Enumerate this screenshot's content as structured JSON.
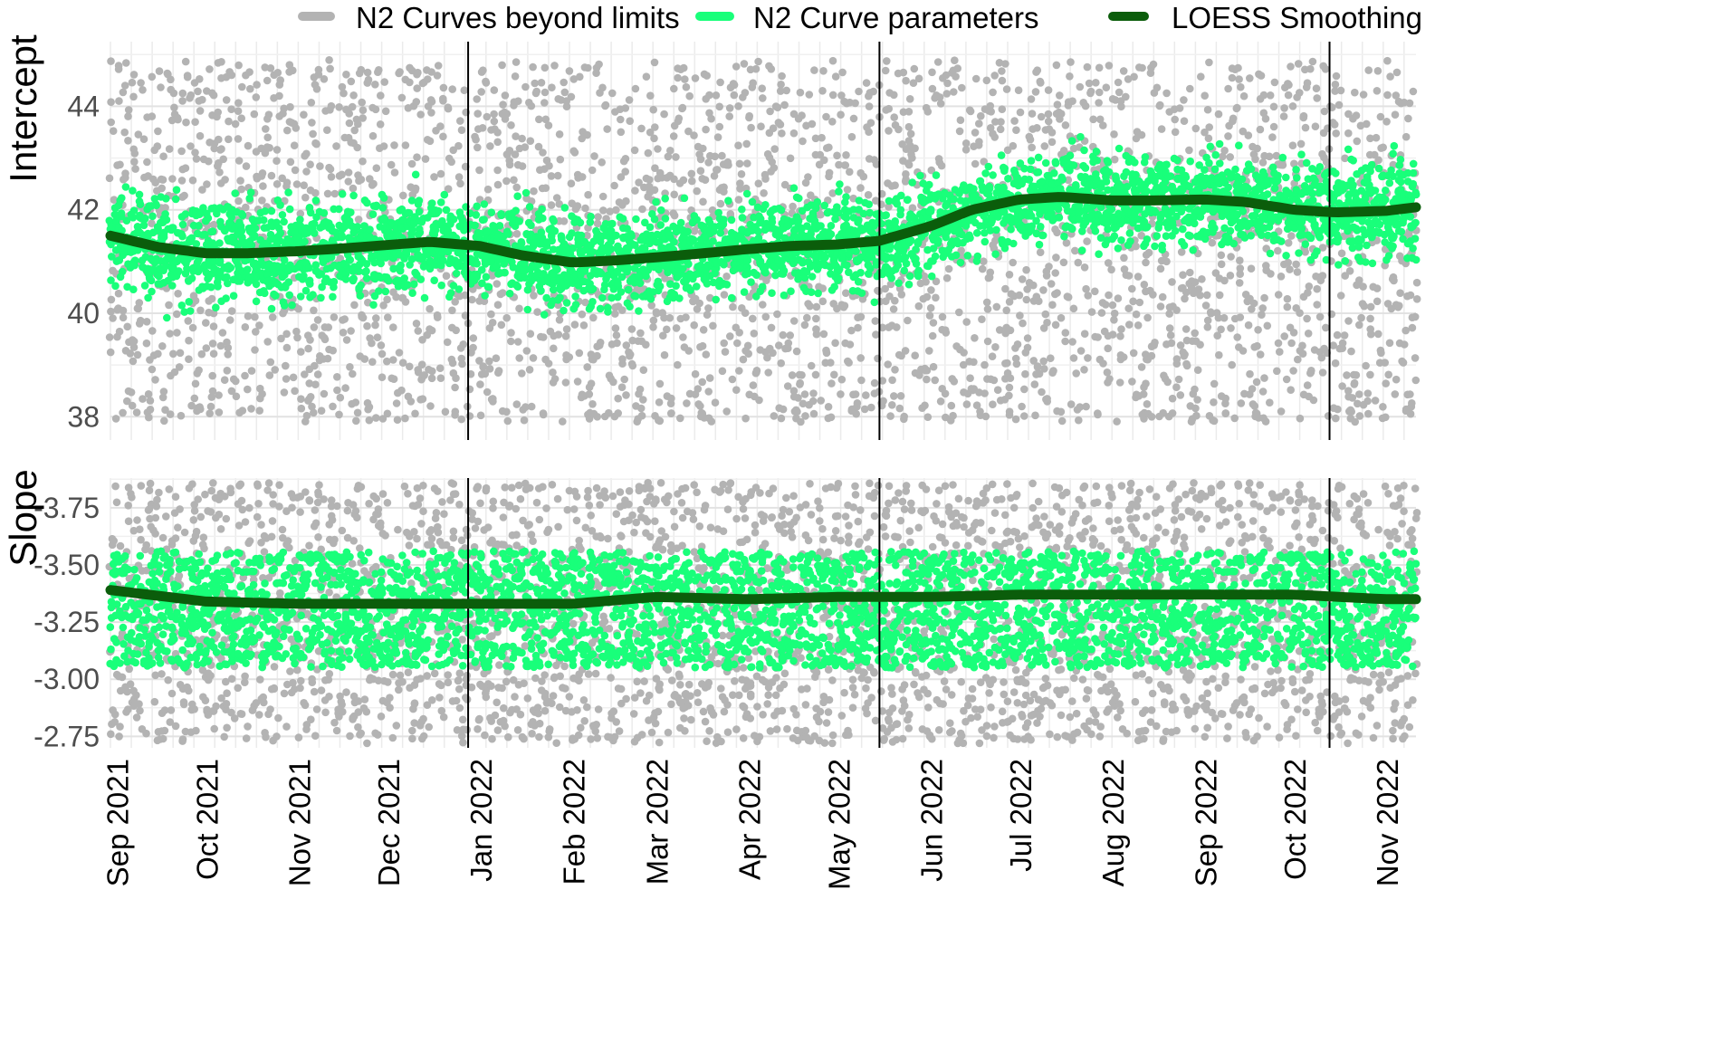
{
  "legend": {
    "items": [
      {
        "label": "N2 Curves beyond limits",
        "color": "#b3b3b3"
      },
      {
        "label": "N2 Curve parameters",
        "color": "#19ff7a"
      },
      {
        "label": "LOESS Smoothing",
        "color": "#0b5d0b"
      }
    ]
  },
  "chart_data": [
    {
      "type": "scatter",
      "panel": "top",
      "ylabel": "Intercept",
      "ylim": [
        37.55,
        45.25
      ],
      "yticks": [
        "38",
        "40",
        "42",
        "44"
      ],
      "ytick_values": [
        38,
        40,
        42,
        44
      ],
      "xlim": [
        "2021-08-30",
        "2022-11-11"
      ],
      "xticks": [
        "Sep 2021",
        "Oct 2021",
        "Nov 2021",
        "Dec 2021",
        "Jan 2022",
        "Feb 2022",
        "Mar 2022",
        "Apr 2022",
        "May 2022",
        "Jun 2022",
        "Jul 2022",
        "Aug 2022",
        "Sep 2022",
        "Oct 2022",
        "Nov 2022"
      ],
      "xtick_dates": [
        "2021-09-01",
        "2021-10-01",
        "2021-11-01",
        "2021-12-01",
        "2022-01-01",
        "2022-02-01",
        "2022-03-01",
        "2022-04-01",
        "2022-05-01",
        "2022-06-01",
        "2022-07-01",
        "2022-08-01",
        "2022-09-01",
        "2022-10-01",
        "2022-11-01"
      ],
      "vlines": [
        "2021-12-28",
        "2022-05-15",
        "2022-10-13"
      ],
      "grid": true,
      "series": [
        {
          "name": "LOESS Smoothing",
          "x": [
            "2021-08-30",
            "2021-09-15",
            "2021-10-01",
            "2021-10-15",
            "2021-11-01",
            "2021-11-15",
            "2021-12-01",
            "2021-12-15",
            "2022-01-01",
            "2022-01-15",
            "2022-02-01",
            "2022-02-15",
            "2022-03-01",
            "2022-03-15",
            "2022-04-01",
            "2022-04-15",
            "2022-05-01",
            "2022-05-15",
            "2022-06-01",
            "2022-06-15",
            "2022-07-01",
            "2022-07-15",
            "2022-08-01",
            "2022-08-15",
            "2022-09-01",
            "2022-09-15",
            "2022-10-01",
            "2022-10-15",
            "2022-11-01",
            "2022-11-11"
          ],
          "values": [
            41.5,
            41.28,
            41.16,
            41.16,
            41.2,
            41.25,
            41.32,
            41.38,
            41.3,
            41.12,
            40.98,
            41.02,
            41.08,
            41.15,
            41.24,
            41.3,
            41.33,
            41.4,
            41.68,
            42.0,
            42.2,
            42.25,
            42.18,
            42.18,
            42.2,
            42.15,
            42.0,
            41.95,
            41.98,
            42.05
          ]
        },
        {
          "name": "N2 Curve parameters",
          "band": {
            "lower": [
              40.2,
              39.8,
              39.6,
              39.6,
              39.7,
              39.8,
              39.9,
              40.0,
              40.0,
              39.8,
              39.6,
              39.6,
              39.7,
              39.8,
              39.9,
              40.0,
              40.0,
              40.1,
              40.4,
              40.6,
              40.9,
              41.0,
              40.8,
              40.8,
              40.9,
              40.8,
              40.6,
              40.5,
              40.5,
              40.6
            ],
            "upper": [
              42.9,
              42.7,
              42.6,
              42.6,
              42.6,
              42.7,
              42.8,
              42.8,
              42.7,
              42.5,
              42.4,
              42.4,
              42.5,
              42.5,
              42.6,
              42.6,
              42.7,
              42.8,
              43.0,
              43.3,
              43.5,
              43.6,
              43.5,
              43.5,
              43.6,
              43.5,
              43.3,
              43.3,
              43.4,
              43.4
            ]
          }
        },
        {
          "name": "N2 Curves beyond limits",
          "range": [
            37.9,
            44.9
          ]
        }
      ]
    },
    {
      "type": "scatter",
      "panel": "bottom",
      "ylabel": "Slope",
      "ylim": [
        2.7,
        3.88
      ],
      "yticks": [
        "-3.75",
        "-3.50",
        "-3.25",
        "-3.00",
        "-2.75"
      ],
      "ytick_values": [
        3.75,
        3.5,
        3.25,
        3.0,
        2.75
      ],
      "xlim": [
        "2021-08-30",
        "2022-11-11"
      ],
      "vlines": [
        "2021-12-28",
        "2022-05-15",
        "2022-10-13"
      ],
      "grid": true,
      "series": [
        {
          "name": "LOESS Smoothing",
          "x": [
            "2021-08-30",
            "2021-10-01",
            "2021-11-01",
            "2021-12-01",
            "2022-01-01",
            "2022-02-01",
            "2022-03-01",
            "2022-04-01",
            "2022-05-01",
            "2022-06-01",
            "2022-07-01",
            "2022-08-01",
            "2022-09-01",
            "2022-10-01",
            "2022-11-01",
            "2022-11-11"
          ],
          "values": [
            3.39,
            3.34,
            3.33,
            3.33,
            3.33,
            3.33,
            3.36,
            3.35,
            3.36,
            3.36,
            3.37,
            3.37,
            3.37,
            3.37,
            3.35,
            3.35
          ]
        },
        {
          "name": "N2 Curve parameters",
          "band": {
            "lower": 3.05,
            "upper": 3.56
          }
        },
        {
          "name": "N2 Curves beyond limits",
          "range": [
            2.72,
            3.86
          ]
        }
      ]
    }
  ]
}
